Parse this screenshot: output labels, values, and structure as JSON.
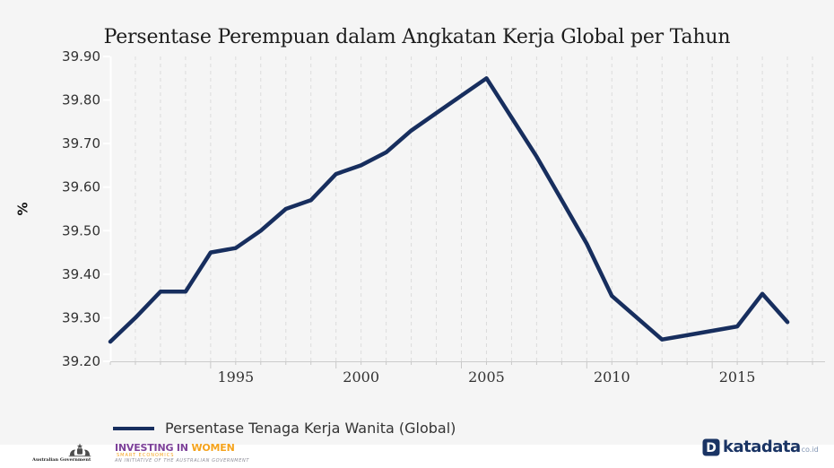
{
  "title": "Persentase Perempuan dalam Angkatan Kerja Global per Tahun",
  "chart_data": {
    "type": "line",
    "title": "Persentase Perempuan dalam Angkatan Kerja Global per Tahun",
    "xlabel": "",
    "ylabel": "%",
    "x": [
      1990,
      1991,
      1992,
      1993,
      1994,
      1995,
      1996,
      1997,
      1998,
      1999,
      2000,
      2001,
      2002,
      2003,
      2004,
      2005,
      2006,
      2007,
      2008,
      2009,
      2010,
      2011,
      2012,
      2013,
      2014,
      2015,
      2016,
      2017
    ],
    "series": [
      {
        "name": "Persentase Tenaga Kerja Wanita (Global)",
        "values": [
          39.245,
          39.3,
          39.36,
          39.36,
          39.45,
          39.46,
          39.5,
          39.55,
          39.57,
          39.63,
          39.65,
          39.68,
          39.73,
          39.77,
          39.81,
          39.85,
          39.76,
          39.67,
          39.57,
          39.47,
          39.35,
          39.3,
          39.25,
          39.26,
          39.27,
          39.28,
          39.355,
          39.29
        ],
        "color": "#172e5e"
      }
    ],
    "ylim": [
      39.2,
      39.9
    ],
    "xlim": [
      1990,
      2018.5
    ],
    "yticks": [
      39.2,
      39.3,
      39.4,
      39.5,
      39.6,
      39.7,
      39.8,
      39.9
    ],
    "xticks": [
      1995,
      2000,
      2005,
      2010,
      2015
    ],
    "grid": "vertical-dashed-per-year",
    "legend_position": "bottom-left"
  },
  "legend": {
    "label": "Persentase Tenaga Kerja Wanita (Global)"
  },
  "footer": {
    "aus_gov": {
      "label": "Australian Government"
    },
    "investing_in_women": {
      "part1": "INVESTING IN",
      "part2": " WOMEN",
      "sub": "SMART ECONOMICS",
      "initiative": "AN INITIATIVE OF THE AUSTRALIAN GOVERNMENT"
    },
    "katadata": {
      "icon_letter": "D",
      "name": "katadata",
      "tld": "co.id"
    }
  },
  "colors": {
    "background": "#f5f5f5",
    "footer_background": "#ffffff",
    "line": "#172e5e",
    "grid": "#dcdcdc",
    "x_axis": "#cccccc",
    "tick": "#c9c9c9",
    "y_axis": "#ffffff",
    "axis_text": "#333333",
    "title_text": "#1c1c1c",
    "iw_purple": "#7d4199",
    "iw_orange": "#f5a31c",
    "katadata_navy": "#1a3464",
    "katadata_gray": "#8296b4",
    "crest_gray": "#4d4d4d"
  }
}
